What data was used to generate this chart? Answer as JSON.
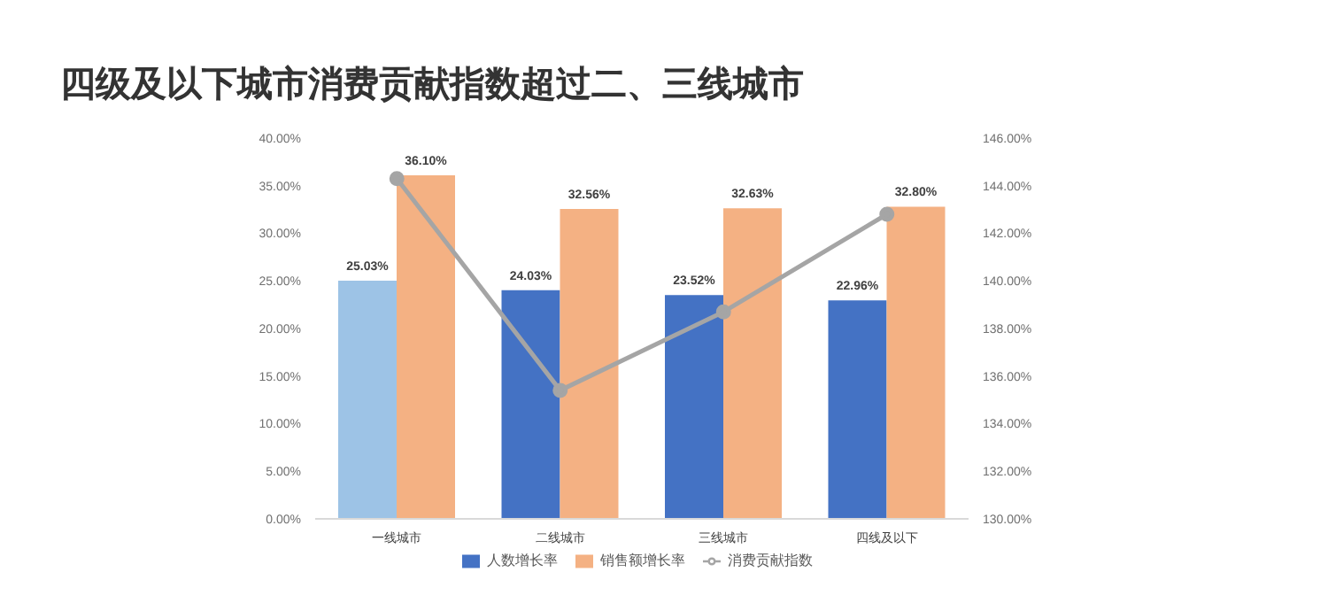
{
  "chart_data": {
    "type": "bar",
    "title": "四级及以下城市消费贡献指数超过二、三线城市",
    "categories": [
      "一线城市",
      "二线城市",
      "三线城市",
      "四线及以下"
    ],
    "series": [
      {
        "name": "人数增长率",
        "color": "#4472c4",
        "colors": [
          "#9dc3e6",
          "#4472c4",
          "#4472c4",
          "#4472c4"
        ],
        "values": [
          25.03,
          24.03,
          23.52,
          22.96
        ],
        "value_labels": [
          "25.03%",
          "24.03%",
          "23.52%",
          "22.96%"
        ]
      },
      {
        "name": "销售额增长率",
        "color": "#f4b183",
        "values": [
          36.1,
          32.56,
          32.63,
          32.8
        ],
        "value_labels": [
          "36.10%",
          "32.56%",
          "32.63%",
          "32.80%"
        ]
      },
      {
        "name": "消费贡献指数",
        "type": "line",
        "axis": "y2",
        "color": "#a5a5a5",
        "values": [
          144.3,
          135.4,
          138.7,
          142.8
        ]
      }
    ],
    "ylim": [
      0,
      40
    ],
    "yticks": [
      {
        "value": 0,
        "label": "0.00%"
      },
      {
        "value": 5,
        "label": "5.00%"
      },
      {
        "value": 10,
        "label": "10.00%"
      },
      {
        "value": 15,
        "label": "15.00%"
      },
      {
        "value": 20,
        "label": "20.00%"
      },
      {
        "value": 25,
        "label": "25.00%"
      },
      {
        "value": 30,
        "label": "30.00%"
      },
      {
        "value": 35,
        "label": "35.00%"
      },
      {
        "value": 40,
        "label": "40.00%"
      }
    ],
    "y2lim": [
      130,
      146
    ],
    "y2ticks": [
      {
        "value": 130,
        "label": "130.00%"
      },
      {
        "value": 132,
        "label": "132.00%"
      },
      {
        "value": 134,
        "label": "134.00%"
      },
      {
        "value": 136,
        "label": "136.00%"
      },
      {
        "value": 138,
        "label": "138.00%"
      },
      {
        "value": 140,
        "label": "140.00%"
      },
      {
        "value": 142,
        "label": "142.00%"
      },
      {
        "value": 144,
        "label": "144.00%"
      },
      {
        "value": 146,
        "label": "146.00%"
      }
    ],
    "grid": false,
    "legend": "bottom",
    "marker": "circle",
    "line_style": "solid"
  }
}
